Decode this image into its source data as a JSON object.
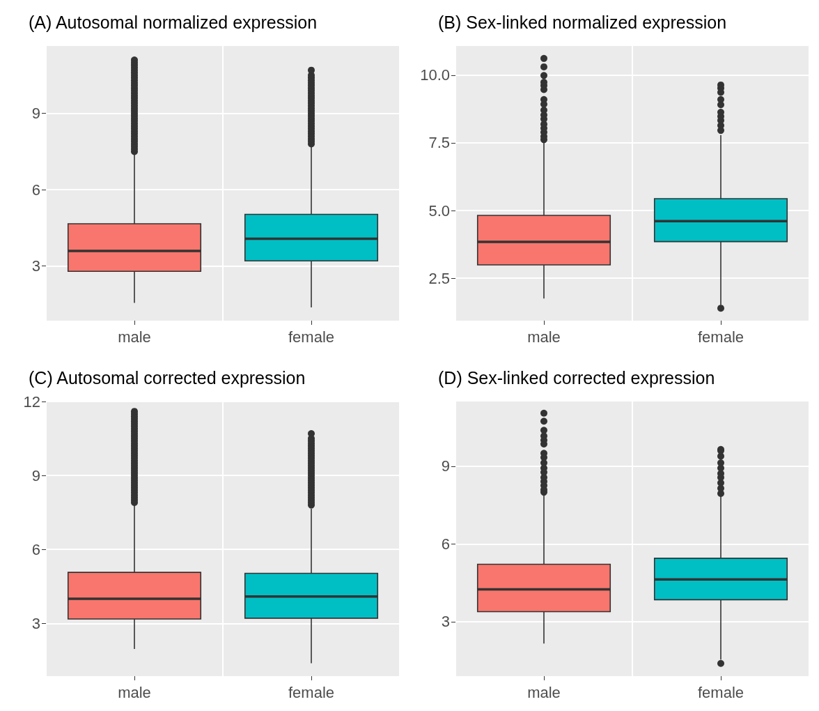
{
  "chart_data": [
    {
      "type": "box",
      "title": "(A) Autosomal normalized expression",
      "categories": [
        "male",
        "female"
      ],
      "colors": [
        "#f8766d",
        "#00bfc4"
      ],
      "ylim": [
        0.85,
        11.65
      ],
      "yticks": [
        3,
        6,
        9
      ],
      "grid": true,
      "boxes": [
        {
          "low": 1.55,
          "q1": 2.79,
          "median": 3.59,
          "q3": 4.66,
          "high": 7.4,
          "outliers": [
            7.5,
            7.6,
            7.7,
            7.8,
            7.9,
            8.0,
            8.1,
            8.2,
            8.3,
            8.4,
            8.5,
            8.6,
            8.7,
            8.8,
            8.9,
            9.0,
            9.1,
            9.2,
            9.3,
            9.4,
            9.5,
            9.6,
            9.7,
            9.8,
            9.9,
            10.0,
            10.1,
            10.2,
            10.3,
            10.4,
            10.5,
            10.6,
            10.7,
            10.8,
            10.9,
            11.0,
            11.1
          ]
        },
        {
          "low": 1.37,
          "q1": 3.2,
          "median": 4.07,
          "q3": 5.03,
          "high": 7.7,
          "outliers": [
            7.8,
            7.9,
            8.0,
            8.1,
            8.2,
            8.3,
            8.4,
            8.5,
            8.6,
            8.7,
            8.8,
            8.9,
            9.0,
            9.1,
            9.2,
            9.3,
            9.4,
            9.5,
            9.6,
            9.7,
            9.8,
            9.9,
            10.0,
            10.1,
            10.2,
            10.3,
            10.4,
            10.5,
            10.7
          ]
        }
      ]
    },
    {
      "type": "box",
      "title": "(B) Sex-linked normalized expression",
      "categories": [
        "male",
        "female"
      ],
      "colors": [
        "#f8766d",
        "#00bfc4"
      ],
      "ylim": [
        0.93,
        11.08
      ],
      "yticks": [
        {
          "value": 2.5,
          "label": "2.5"
        },
        {
          "value": 5,
          "label": "5.0"
        },
        {
          "value": 7.5,
          "label": "7.5"
        },
        {
          "value": 10,
          "label": "10.0"
        }
      ],
      "grid": true,
      "boxes": [
        {
          "low": 1.75,
          "q1": 2.99,
          "median": 3.84,
          "q3": 4.82,
          "high": 7.54,
          "outliers": [
            7.62,
            7.74,
            7.89,
            8.04,
            8.19,
            8.38,
            8.53,
            8.71,
            8.93,
            9.1,
            9.47,
            9.62,
            9.74,
            9.99,
            10.31,
            10.62
          ]
        },
        {
          "low": 1.5,
          "q1": 3.85,
          "median": 4.61,
          "q3": 5.44,
          "high": 7.79,
          "outliers": [
            1.39,
            7.96,
            8.14,
            8.33,
            8.48,
            8.63,
            8.91,
            9.1,
            9.37,
            9.52,
            9.64
          ]
        }
      ]
    },
    {
      "type": "box",
      "title": "(C) Autosomal corrected expression",
      "categories": [
        "male",
        "female"
      ],
      "colors": [
        "#f8766d",
        "#00bfc4"
      ],
      "ylim": [
        0.86,
        12
      ],
      "yticks": [
        3,
        6,
        9,
        12
      ],
      "grid": true,
      "boxes": [
        {
          "low": 1.96,
          "q1": 3.18,
          "median": 4.0,
          "q3": 5.07,
          "high": 7.8,
          "outliers": [
            7.9,
            8.0,
            8.1,
            8.2,
            8.3,
            8.4,
            8.5,
            8.6,
            8.7,
            8.8,
            8.9,
            9.0,
            9.1,
            9.2,
            9.3,
            9.4,
            9.5,
            9.6,
            9.7,
            9.8,
            9.9,
            10.0,
            10.1,
            10.2,
            10.3,
            10.4,
            10.5,
            10.6,
            10.7,
            10.8,
            10.9,
            11.0,
            11.1,
            11.2,
            11.3,
            11.4,
            11.5,
            11.6
          ]
        },
        {
          "low": 1.38,
          "q1": 3.21,
          "median": 4.09,
          "q3": 5.03,
          "high": 7.65,
          "outliers": [
            7.8,
            7.9,
            8.0,
            8.1,
            8.2,
            8.3,
            8.4,
            8.5,
            8.6,
            8.7,
            8.8,
            8.9,
            9.0,
            9.1,
            9.2,
            9.3,
            9.4,
            9.5,
            9.6,
            9.7,
            9.8,
            9.9,
            10.0,
            10.1,
            10.2,
            10.3,
            10.4,
            10.5,
            10.7
          ]
        }
      ]
    },
    {
      "type": "box",
      "title": "(D) Sex-linked corrected expression",
      "categories": [
        "male",
        "female"
      ],
      "colors": [
        "#f8766d",
        "#00bfc4"
      ],
      "ylim": [
        0.9,
        11.5
      ],
      "yticks": [
        3,
        6,
        9
      ],
      "grid": true,
      "boxes": [
        {
          "low": 2.16,
          "q1": 3.39,
          "median": 4.25,
          "q3": 5.22,
          "high": 7.9,
          "outliers": [
            8.0,
            8.1,
            8.26,
            8.41,
            8.57,
            8.77,
            8.93,
            9.13,
            9.34,
            9.5,
            9.86,
            10.01,
            10.17,
            10.39,
            10.74,
            11.05
          ]
        },
        {
          "low": 1.54,
          "q1": 3.85,
          "median": 4.63,
          "q3": 5.45,
          "high": 7.84,
          "outliers": [
            1.39,
            7.95,
            8.15,
            8.36,
            8.57,
            8.72,
            8.93,
            9.13,
            9.39,
            9.6,
            9.65
          ]
        }
      ]
    }
  ]
}
